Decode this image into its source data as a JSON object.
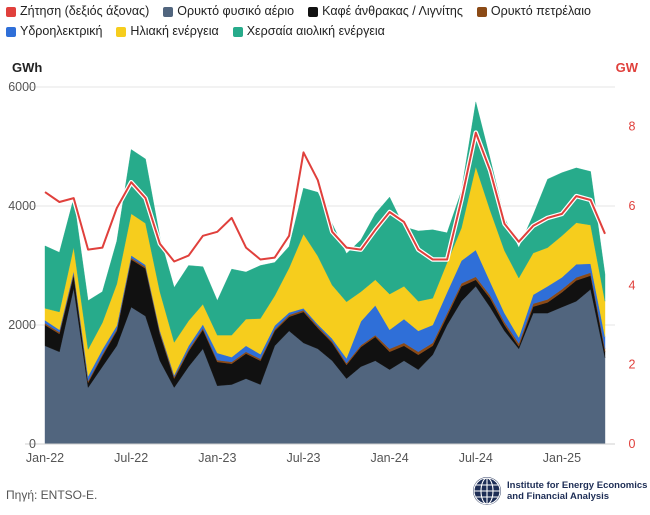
{
  "legend": [
    {
      "name": "Ζήτηση (δεξιός άξονας)",
      "color": "#e0403c"
    },
    {
      "name": "Ορυκτό φυσικό αέριο",
      "color": "#51657e"
    },
    {
      "name": "Καφέ άνθρακας / Λιγνίτης",
      "color": "#111111"
    },
    {
      "name": "Ορυκτό πετρέλαιο",
      "color": "#8b4a16"
    },
    {
      "name": "Υδροηλεκτρική",
      "color": "#2f6fd8"
    },
    {
      "name": "Ηλιακή ενέργεια",
      "color": "#f6cd1d"
    },
    {
      "name": "Χερσαία αιολική ενέργεια",
      "color": "#27ab8b"
    }
  ],
  "units": {
    "left": "GWh",
    "right": "GW"
  },
  "source": "Πηγή: ENTSO-E.",
  "logo": {
    "line1": "Institute for Energy Economics",
    "line2": "and Financial Analysis"
  },
  "chart_data": {
    "type": "area",
    "stacked": true,
    "x": [
      "Jan-22",
      "Feb-22",
      "Mar-22",
      "Apr-22",
      "May-22",
      "Jun-22",
      "Jul-22",
      "Aug-22",
      "Sep-22",
      "Oct-22",
      "Nov-22",
      "Dec-22",
      "Jan-23",
      "Feb-23",
      "Mar-23",
      "Apr-23",
      "May-23",
      "Jun-23",
      "Jul-23",
      "Aug-23",
      "Sep-23",
      "Oct-23",
      "Nov-23",
      "Dec-23",
      "Jan-24",
      "Feb-24",
      "Mar-24",
      "Apr-24",
      "May-24",
      "Jun-24",
      "Jul-24",
      "Aug-24",
      "Sep-24",
      "Oct-24",
      "Nov-24",
      "Dec-24",
      "Jan-25",
      "Feb-25",
      "Mar-25",
      "Apr-25"
    ],
    "x_tick_labels": [
      "Jan-22",
      "Jul-22",
      "Jan-23",
      "Jul-23",
      "Jan-24",
      "Jul-24",
      "Jan-25"
    ],
    "y_left": {
      "label": "GWh",
      "range": [
        0,
        6000
      ],
      "ticks": [
        0,
        2000,
        4000,
        6000
      ]
    },
    "y_right": {
      "label": "GW",
      "range": [
        0,
        9
      ],
      "ticks": [
        0,
        2,
        4,
        6,
        8
      ]
    },
    "series": [
      {
        "name": "Ορυκτό φυσικό αέριο",
        "color": "#51657e",
        "values": [
          1650,
          1550,
          2620,
          950,
          1300,
          1650,
          2300,
          2150,
          1400,
          950,
          1300,
          1600,
          980,
          1000,
          1100,
          1000,
          1650,
          1900,
          1700,
          1600,
          1400,
          1100,
          1300,
          1400,
          1250,
          1400,
          1250,
          1500,
          2000,
          2400,
          2650,
          2300,
          1900,
          1600,
          2200,
          2200,
          2300,
          2400,
          2600,
          1450
        ]
      },
      {
        "name": "Καφέ άνθρακας / Λιγνίτης",
        "color": "#111111",
        "values": [
          350,
          300,
          220,
          80,
          180,
          250,
          800,
          800,
          450,
          150,
          260,
          320,
          400,
          350,
          420,
          400,
          250,
          240,
          520,
          350,
          300,
          230,
          330,
          400,
          300,
          250,
          250,
          150,
          150,
          250,
          110,
          150,
          100,
          40,
          110,
          180,
          250,
          350,
          230,
          100
        ]
      },
      {
        "name": "Ορυκτό πετρέλαιο",
        "color": "#8b4a16",
        "values": [
          30,
          30,
          30,
          30,
          30,
          30,
          30,
          30,
          30,
          30,
          30,
          30,
          30,
          30,
          30,
          30,
          30,
          30,
          30,
          30,
          30,
          30,
          30,
          30,
          50,
          50,
          50,
          50,
          50,
          50,
          50,
          50,
          50,
          50,
          50,
          50,
          50,
          50,
          50,
          50
        ]
      },
      {
        "name": "Υδροηλεκτρική",
        "color": "#2f6fd8",
        "values": [
          50,
          40,
          40,
          80,
          80,
          60,
          40,
          30,
          30,
          30,
          60,
          60,
          120,
          80,
          100,
          80,
          60,
          40,
          30,
          30,
          40,
          80,
          400,
          500,
          320,
          400,
          350,
          300,
          350,
          380,
          450,
          230,
          150,
          100,
          150,
          220,
          200,
          220,
          150,
          200
        ]
      },
      {
        "name": "Ηλιακή ενέργεια",
        "color": "#f6cd1d",
        "values": [
          200,
          300,
          400,
          450,
          450,
          700,
          700,
          700,
          650,
          550,
          420,
          340,
          300,
          370,
          450,
          600,
          500,
          750,
          1250,
          1150,
          900,
          950,
          500,
          430,
          600,
          550,
          500,
          450,
          500,
          550,
          1400,
          1200,
          1050,
          1000,
          700,
          650,
          700,
          700,
          650,
          600
        ]
      },
      {
        "name": "Χερσαία αιολική ενέργεια",
        "color": "#27ab8b",
        "values": [
          1050,
          1000,
          820,
          820,
          520,
          720,
          1080,
          1080,
          920,
          920,
          930,
          630,
          580,
          1110,
          790,
          890,
          560,
          360,
          770,
          1070,
          1030,
          810,
          870,
          1110,
          1630,
          1000,
          1180,
          1150,
          500,
          620,
          1090,
          870,
          550,
          510,
          640,
          1150,
          1060,
          920,
          900,
          450
        ]
      }
    ],
    "line_series": {
      "name": "Ζήτηση (δεξιός άξονας)",
      "axis": "right",
      "color": "#e0403c",
      "values": [
        6.35,
        6.1,
        6.2,
        4.9,
        4.95,
        5.95,
        6.6,
        6.2,
        5.05,
        4.6,
        4.75,
        5.25,
        5.35,
        5.7,
        4.95,
        4.65,
        4.7,
        5.25,
        7.35,
        6.65,
        5.35,
        4.95,
        4.9,
        5.4,
        5.85,
        5.6,
        4.9,
        4.65,
        4.65,
        6.15,
        7.85,
        6.9,
        5.55,
        5.1,
        5.5,
        5.7,
        5.8,
        6.25,
        6.15,
        5.3
      ]
    }
  }
}
